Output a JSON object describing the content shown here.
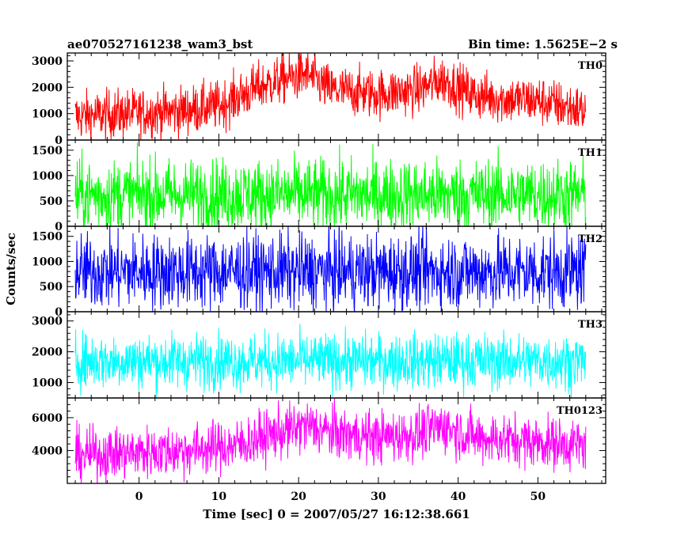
{
  "header": {
    "left_title": "ae070527161238_wam3_bst",
    "right_title": "Bin time: 1.5625E−2 s"
  },
  "chart_data": {
    "type": "line",
    "xlabel": "Time [sec] 0 = 2007/05/27 16:12:38.661",
    "ylabel": "Counts/sec",
    "xlim": [
      -9,
      58.5
    ],
    "x_range": [
      -8,
      56
    ],
    "bin_time_s": 0.015625,
    "xticks": [
      0,
      10,
      20,
      30,
      40,
      50
    ],
    "panels": [
      {
        "name": "TH0",
        "color": "#ff0000",
        "ylim": [
          0,
          3300
        ],
        "yticks": [
          0,
          1000,
          2000,
          3000
        ],
        "profile": [
          [
            -8,
            900
          ],
          [
            5,
            1100
          ],
          [
            10,
            1300
          ],
          [
            15,
            2000
          ],
          [
            18,
            2300
          ],
          [
            21,
            2500
          ],
          [
            24,
            1900
          ],
          [
            30,
            1750
          ],
          [
            35,
            1900
          ],
          [
            38,
            2300
          ],
          [
            42,
            1700
          ],
          [
            46,
            1550
          ],
          [
            50,
            1500
          ],
          [
            56,
            1100
          ]
        ],
        "spread": 500
      },
      {
        "name": "TH1",
        "color": "#00ff00",
        "ylim": [
          0,
          1700
        ],
        "yticks": [
          0,
          500,
          1000,
          1500
        ],
        "profile": [
          [
            -8,
            620
          ],
          [
            56,
            620
          ]
        ],
        "spread": 380
      },
      {
        "name": "TH2",
        "color": "#0000ff",
        "ylim": [
          0,
          1700
        ],
        "yticks": [
          0,
          500,
          1000,
          1500
        ],
        "profile": [
          [
            -8,
            800
          ],
          [
            56,
            800
          ]
        ],
        "spread": 400
      },
      {
        "name": "TH3",
        "color": "#00ffff",
        "ylim": [
          500,
          3300
        ],
        "yticks": [
          1000,
          2000,
          3000
        ],
        "profile": [
          [
            -8,
            1700
          ],
          [
            56,
            1700
          ]
        ],
        "spread": 480
      },
      {
        "name": "TH0123",
        "color": "#ff00ff",
        "ylim": [
          2000,
          7200
        ],
        "yticks": [
          4000,
          6000
        ],
        "profile": [
          [
            -8,
            3700
          ],
          [
            5,
            4000
          ],
          [
            12,
            4300
          ],
          [
            17,
            5000
          ],
          [
            21,
            5500
          ],
          [
            25,
            5000
          ],
          [
            30,
            4800
          ],
          [
            35,
            5000
          ],
          [
            38,
            5500
          ],
          [
            42,
            4800
          ],
          [
            48,
            4600
          ],
          [
            56,
            4300
          ]
        ],
        "spread": 850
      }
    ]
  }
}
